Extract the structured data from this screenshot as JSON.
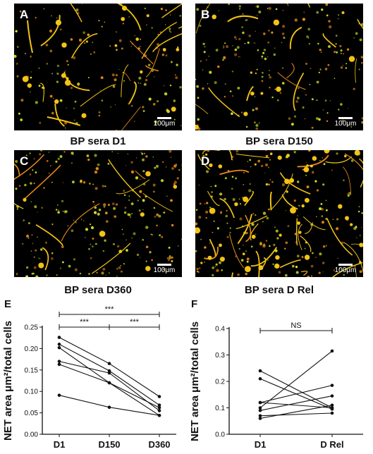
{
  "micrographs": [
    {
      "label": "A",
      "caption": "BP sera D1",
      "scale": "100μm"
    },
    {
      "label": "B",
      "caption": "BP sera D150",
      "scale": "100μm"
    },
    {
      "label": "C",
      "caption": "BP sera D360",
      "scale": "100μm"
    },
    {
      "label": "D",
      "caption": "BP sera D Rel",
      "scale": "100μm"
    }
  ],
  "colors": {
    "fiber": "#f2c316",
    "dot_green": "#d8e826",
    "dot_orange": "#e88a1a",
    "line": "#111111"
  },
  "chart_data": [
    {
      "type": "line",
      "panel_label": "E",
      "ylabel": "NET area μm²/total cells",
      "categories": [
        "D1",
        "D150",
        "D360"
      ],
      "ylim": [
        0,
        0.25
      ],
      "yticks": [
        "0.00",
        "0.05",
        "0.10",
        "0.15",
        "0.20",
        "0.25"
      ],
      "series": [
        {
          "values": [
            0.226,
            0.165,
            0.088
          ]
        },
        {
          "values": [
            0.21,
            0.148,
            0.068
          ]
        },
        {
          "values": [
            0.202,
            0.12,
            0.062
          ]
        },
        {
          "values": [
            0.17,
            0.143,
            0.055
          ]
        },
        {
          "values": [
            0.163,
            0.12,
            0.044
          ]
        },
        {
          "values": [
            0.091,
            0.063,
            0.044
          ]
        }
      ],
      "significance": [
        {
          "from": "D1",
          "to": "D360",
          "label": "***"
        },
        {
          "from": "D1",
          "to": "D150",
          "label": "***"
        },
        {
          "from": "D150",
          "to": "D360",
          "label": "***"
        }
      ]
    },
    {
      "type": "line",
      "panel_label": "F",
      "ylabel": "NET area μm²/total cells",
      "categories": [
        "D1",
        "D Rel"
      ],
      "ylim": [
        0,
        0.4
      ],
      "yticks": [
        "0.0",
        "0.1",
        "0.2",
        "0.3",
        "0.4"
      ],
      "series": [
        {
          "values": [
            0.24,
            0.1
          ]
        },
        {
          "values": [
            0.21,
            0.095
          ]
        },
        {
          "values": [
            0.12,
            0.1
          ]
        },
        {
          "values": [
            0.12,
            0.185
          ]
        },
        {
          "values": [
            0.1,
            0.315
          ]
        },
        {
          "values": [
            0.09,
            0.145
          ]
        },
        {
          "values": [
            0.07,
            0.08
          ]
        },
        {
          "values": [
            0.06,
            0.11
          ]
        }
      ],
      "significance": [
        {
          "from": "D1",
          "to": "D Rel",
          "label": "NS"
        }
      ]
    }
  ]
}
